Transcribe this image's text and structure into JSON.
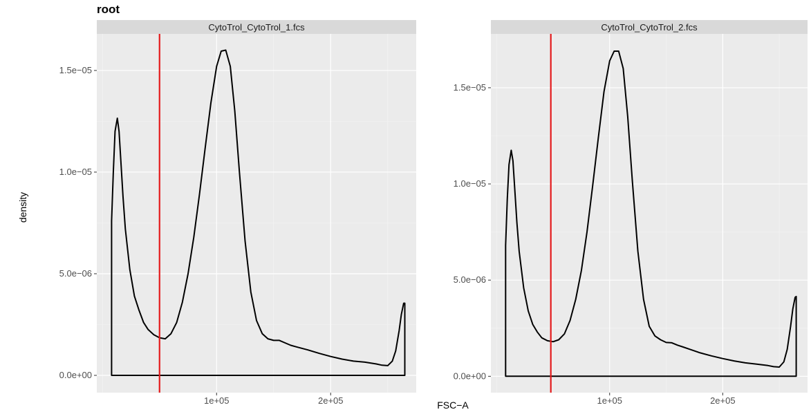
{
  "chart_data": {
    "type": "area",
    "title": "root",
    "xlabel": "FSC−A",
    "ylabel": "density",
    "grid": true,
    "legend": "none",
    "colors": {
      "panel_bg": "#ebebeb",
      "grid_major": "#ffffff",
      "grid_minor": "#f4f4f4",
      "strip_bg": "#d9d9d9",
      "curve": "#000000",
      "gate_line": "#e41a1c"
    },
    "panels": [
      {
        "strip": "CytoTrol_CytoTrol_1.fcs",
        "xlim": [
          -5000,
          275000
        ],
        "ylim": [
          -8.5e-07,
          1.68e-05
        ],
        "x_ticks": [
          100000,
          200000
        ],
        "x_tick_labels": [
          "1e+05",
          "2e+05"
        ],
        "y_ticks": [
          0,
          5e-06,
          1e-05,
          1.5e-05
        ],
        "y_tick_labels": [
          "0.0e+00",
          "5.0e−06",
          "1.0e−05",
          "1.5e−05"
        ],
        "gate_x": 50000,
        "x": [
          8000,
          8000,
          9500,
          11000,
          13000,
          14500,
          16000,
          18000,
          20000,
          24000,
          28000,
          32000,
          36000,
          40000,
          45000,
          50000,
          55000,
          60000,
          65000,
          70000,
          75000,
          80000,
          85000,
          90000,
          95000,
          100000,
          104000,
          108000,
          112000,
          116000,
          120000,
          125000,
          130000,
          135000,
          140000,
          145000,
          150000,
          155000,
          160000,
          165000,
          170000,
          180000,
          190000,
          200000,
          210000,
          220000,
          230000,
          240000,
          245000,
          250000,
          254000,
          257000,
          260000,
          262000,
          264000,
          265000,
          265000
        ],
        "y": [
          0,
          7.6e-06,
          1e-05,
          1.2e-05,
          1.265e-05,
          1.2e-05,
          1.06e-05,
          8.8e-06,
          7.2e-06,
          5.2e-06,
          3.9e-06,
          3.2e-06,
          2.6e-06,
          2.25e-06,
          2e-06,
          1.85e-06,
          1.8e-06,
          2.05e-06,
          2.6e-06,
          3.6e-06,
          5e-06,
          6.8e-06,
          8.9e-06,
          1.12e-05,
          1.34e-05,
          1.52e-05,
          1.595e-05,
          1.6e-05,
          1.52e-05,
          1.3e-05,
          1e-05,
          6.6e-06,
          4.1e-06,
          2.7e-06,
          2.05e-06,
          1.8e-06,
          1.72e-06,
          1.72e-06,
          1.6e-06,
          1.48e-06,
          1.4e-06,
          1.25e-06,
          1.08e-06,
          9.3e-07,
          8e-07,
          7e-07,
          6.5e-07,
          5.6e-07,
          5e-07,
          4.8e-07,
          7e-07,
          1.2e-06,
          2.2e-06,
          3e-06,
          3.55e-06,
          3.55e-06,
          0
        ]
      },
      {
        "strip": "CytoTrol_CytoTrol_2.fcs",
        "xlim": [
          -5000,
          275000
        ],
        "ylim": [
          -8.5e-07,
          1.78e-05
        ],
        "x_ticks": [
          100000,
          200000
        ],
        "x_tick_labels": [
          "1e+05",
          "2e+05"
        ],
        "y_ticks": [
          0,
          5e-06,
          1e-05,
          1.5e-05
        ],
        "y_tick_labels": [
          "0.0e+00",
          "5.0e−06",
          "1.0e−05",
          "1.5e−05"
        ],
        "gate_x": 48000,
        "x": [
          8000,
          8000,
          9500,
          11000,
          13000,
          14500,
          16000,
          18000,
          20000,
          24000,
          28000,
          32000,
          36000,
          40000,
          45000,
          50000,
          55000,
          60000,
          65000,
          70000,
          75000,
          80000,
          85000,
          90000,
          95000,
          100000,
          104000,
          108000,
          112000,
          116000,
          120000,
          125000,
          130000,
          135000,
          140000,
          145000,
          150000,
          155000,
          160000,
          165000,
          170000,
          180000,
          190000,
          200000,
          210000,
          220000,
          230000,
          240000,
          245000,
          250000,
          254000,
          257000,
          260000,
          262000,
          264000,
          265000,
          265000
        ],
        "y": [
          0,
          6.8e-06,
          9.2e-06,
          1.1e-05,
          1.175e-05,
          1.12e-05,
          9.8e-06,
          8e-06,
          6.5e-06,
          4.6e-06,
          3.4e-06,
          2.7e-06,
          2.3e-06,
          2e-06,
          1.85e-06,
          1.8e-06,
          1.9e-06,
          2.2e-06,
          2.9e-06,
          4e-06,
          5.5e-06,
          7.5e-06,
          9.9e-06,
          1.24e-05,
          1.48e-05,
          1.64e-05,
          1.69e-05,
          1.69e-05,
          1.6e-05,
          1.35e-05,
          1.02e-05,
          6.5e-06,
          4e-06,
          2.6e-06,
          2.1e-06,
          1.9e-06,
          1.76e-06,
          1.74e-06,
          1.62e-06,
          1.52e-06,
          1.42e-06,
          1.22e-06,
          1.06e-06,
          9.2e-07,
          8e-07,
          7e-07,
          6.3e-07,
          5.6e-07,
          5e-07,
          4.8e-07,
          7.5e-07,
          1.4e-06,
          2.6e-06,
          3.5e-06,
          4.1e-06,
          4.15e-06,
          0
        ]
      }
    ]
  }
}
